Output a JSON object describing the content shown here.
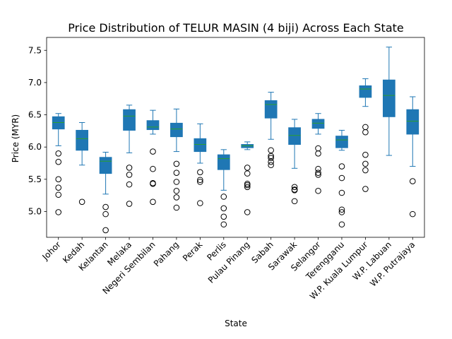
{
  "chart_data": {
    "type": "box",
    "title": "Price Distribution of TELUR MASIN (4 biji) Across Each State",
    "xlabel": "State",
    "ylabel": "Price (MYR)",
    "ylim": [
      4.6,
      7.7
    ],
    "yticks": [
      5.0,
      5.5,
      6.0,
      6.5,
      7.0,
      7.5
    ],
    "ytick_labels": [
      "5.0",
      "5.5",
      "6.0",
      "6.5",
      "7.0",
      "7.5"
    ],
    "grid": false,
    "colors": {
      "box": "#1f77b4",
      "median": "#2ca02c",
      "whisker": "#1f77b4",
      "flier": "#000000"
    },
    "categories": [
      "Johor",
      "Kedah",
      "Kelantan",
      "Melaka",
      "Negeri Sembilan",
      "Pahang",
      "Perak",
      "Perlis",
      "Pulau Pinang",
      "Sabah",
      "Sarawak",
      "Selangor",
      "Terengganu",
      "W.P. Kuala Lumpur",
      "W.P. Labuan",
      "W.P. Putrajaya"
    ],
    "boxes": [
      {
        "whislo": 6.02,
        "q1": 6.28,
        "med": 6.38,
        "q3": 6.47,
        "whishi": 6.52,
        "fliers": [
          5.9,
          5.77,
          5.5,
          5.37,
          5.26,
          4.99
        ]
      },
      {
        "whislo": 5.72,
        "q1": 5.95,
        "med": 6.13,
        "q3": 6.26,
        "whishi": 6.38,
        "fliers": [
          5.15
        ]
      },
      {
        "whislo": 5.27,
        "q1": 5.59,
        "med": 5.78,
        "q3": 5.84,
        "whishi": 5.92,
        "fliers": [
          5.07,
          4.96,
          4.71
        ]
      },
      {
        "whislo": 5.91,
        "q1": 6.26,
        "med": 6.48,
        "q3": 6.58,
        "whishi": 6.65,
        "fliers": [
          5.68,
          5.57,
          5.42,
          5.12
        ]
      },
      {
        "whislo": 6.2,
        "q1": 6.27,
        "med": 6.31,
        "q3": 6.41,
        "whishi": 6.57,
        "fliers": [
          5.93,
          5.66,
          5.44,
          5.43,
          5.15
        ]
      },
      {
        "whislo": 5.93,
        "q1": 6.16,
        "med": 6.28,
        "q3": 6.37,
        "whishi": 6.59,
        "fliers": [
          5.74,
          5.6,
          5.46,
          5.32,
          5.22,
          5.06
        ]
      },
      {
        "whislo": 5.75,
        "q1": 5.93,
        "med": 6.04,
        "q3": 6.13,
        "whishi": 6.36,
        "fliers": [
          5.61,
          5.49,
          5.46,
          5.13
        ]
      },
      {
        "whislo": 5.33,
        "q1": 5.65,
        "med": 5.82,
        "q3": 5.88,
        "whishi": 5.96,
        "fliers": [
          5.23,
          5.05,
          4.92,
          4.8
        ]
      },
      {
        "whislo": 5.96,
        "q1": 5.99,
        "med": 6.02,
        "q3": 6.04,
        "whishi": 6.08,
        "fliers": [
          5.68,
          5.59,
          5.43,
          5.41,
          5.38,
          4.99
        ]
      },
      {
        "whislo": 6.12,
        "q1": 6.45,
        "med": 6.66,
        "q3": 6.72,
        "whishi": 6.85,
        "fliers": [
          5.95,
          5.86,
          5.83,
          5.77,
          5.72
        ]
      },
      {
        "whislo": 5.67,
        "q1": 6.04,
        "med": 6.18,
        "q3": 6.3,
        "whishi": 6.43,
        "fliers": [
          5.38,
          5.34,
          5.33,
          5.16
        ]
      },
      {
        "whislo": 6.2,
        "q1": 6.29,
        "med": 6.37,
        "q3": 6.43,
        "whishi": 6.52,
        "fliers": [
          5.98,
          5.9,
          5.66,
          5.6,
          5.57,
          5.32
        ]
      },
      {
        "whislo": 5.95,
        "q1": 5.99,
        "med": 6.11,
        "q3": 6.17,
        "whishi": 6.26,
        "fliers": [
          5.7,
          5.52,
          5.29,
          5.03,
          4.99,
          4.8
        ]
      },
      {
        "whislo": 6.63,
        "q1": 6.77,
        "med": 6.9,
        "q3": 6.95,
        "whishi": 7.06,
        "fliers": [
          6.31,
          6.23,
          5.88,
          5.74,
          5.64,
          5.35
        ]
      },
      {
        "whislo": 5.87,
        "q1": 6.47,
        "med": 6.8,
        "q3": 7.04,
        "whishi": 7.55,
        "fliers": []
      },
      {
        "whislo": 5.7,
        "q1": 6.2,
        "med": 6.4,
        "q3": 6.58,
        "whishi": 6.78,
        "fliers": [
          5.47,
          4.96
        ]
      }
    ]
  }
}
